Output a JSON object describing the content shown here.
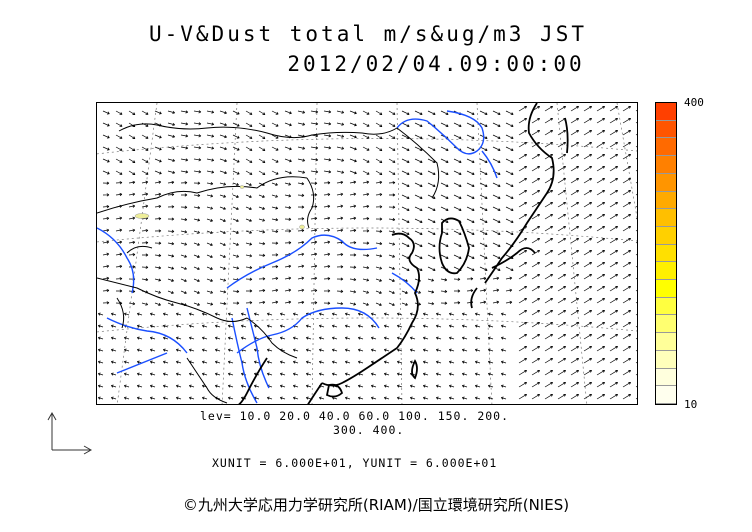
{
  "header": {
    "title_line1": "U-V&Dust total m/s&ug/m3 JST",
    "title_line2": "2012/02/04.09:00:00"
  },
  "colorbar": {
    "max_label": "400",
    "min_label": "10",
    "colors": [
      "#ff4000",
      "#ff5500",
      "#ff6a00",
      "#ff8000",
      "#ff9500",
      "#ffaa00",
      "#ffbf00",
      "#ffd000",
      "#ffe000",
      "#fff000",
      "#ffff00",
      "#ffff40",
      "#ffff70",
      "#ffff99",
      "#ffffbb",
      "#ffffdd",
      "#ffffee"
    ]
  },
  "vector_legend": {
    "lev_line1": "lev= 10.0 20.0 40.0 60.0 100. 150. 200.",
    "lev_line2": "300. 400."
  },
  "units": {
    "text": "XUNIT = 6.000E+01, YUNIT = 6.000E+01"
  },
  "footer": {
    "copyright": "©九州大学応用力学研究所(RIAM)/国立環境研究所(NIES)"
  },
  "map": {
    "coast_color": "#000000",
    "river_color": "#1a4fff",
    "dust_color": "#eeee99"
  }
}
